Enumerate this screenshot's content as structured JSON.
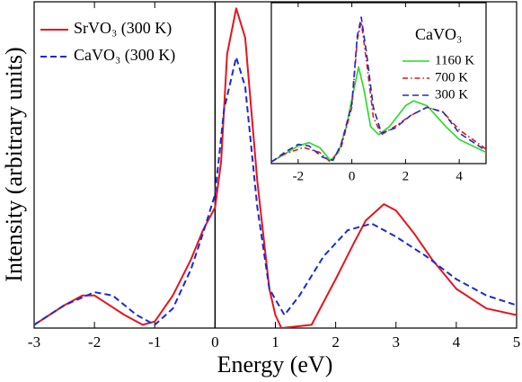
{
  "chart_data": [
    {
      "type": "line",
      "xlabel": "Energy (eV)",
      "ylabel": "Intensity (arbitrary units)",
      "xlim": [
        -3,
        5
      ],
      "xticks": [
        -3,
        -2,
        -1,
        0,
        1,
        2,
        3,
        4,
        5
      ],
      "ylim": [
        0,
        1
      ],
      "legend": "upper left",
      "series": [
        {
          "name": "SrVO₃ (300 K)",
          "color": "#e8141c",
          "linestyle": "solid",
          "x": [
            -3,
            -2.5,
            -2.2,
            -2.0,
            -1.5,
            -1.2,
            -1.0,
            -0.7,
            -0.4,
            -0.2,
            0,
            0.1,
            0.2,
            0.35,
            0.5,
            0.7,
            0.9,
            1.0,
            1.1,
            1.6,
            2.0,
            2.3,
            2.5,
            2.8,
            3.0,
            3.3,
            3.6,
            4.0,
            4.5,
            5.0
          ],
          "values": [
            0.01,
            0.07,
            0.1,
            0.1,
            0.04,
            0.01,
            0.02,
            0.1,
            0.21,
            0.3,
            0.37,
            0.51,
            0.84,
            0.98,
            0.89,
            0.45,
            0.12,
            0.04,
            0.0,
            0.01,
            0.15,
            0.26,
            0.33,
            0.38,
            0.36,
            0.29,
            0.21,
            0.12,
            0.06,
            0.04
          ]
        },
        {
          "name": "CaVO₃ (300 K)",
          "color": "#1a2ad6",
          "linestyle": "dashed",
          "x": [
            -3,
            -2.5,
            -2.0,
            -1.7,
            -1.3,
            -1.0,
            -0.7,
            -0.4,
            -0.2,
            0,
            0.15,
            0.35,
            0.5,
            0.7,
            0.9,
            1.15,
            1.4,
            1.8,
            2.2,
            2.6,
            3.0,
            3.5,
            4.0,
            4.5,
            5.0
          ],
          "values": [
            0.01,
            0.07,
            0.11,
            0.1,
            0.04,
            0.01,
            0.06,
            0.18,
            0.29,
            0.41,
            0.67,
            0.83,
            0.74,
            0.37,
            0.12,
            0.04,
            0.1,
            0.22,
            0.3,
            0.32,
            0.28,
            0.22,
            0.15,
            0.1,
            0.07
          ]
        }
      ]
    },
    {
      "type": "line",
      "title": "CaVO₃",
      "xlim": [
        -3,
        5
      ],
      "xticks": [
        -2,
        0,
        2,
        4
      ],
      "ylim": [
        0,
        1
      ],
      "legend": "upper right",
      "series": [
        {
          "name": "1160 K",
          "color": "#22dd22",
          "linestyle": "solid",
          "x": [
            -3,
            -2.5,
            -2,
            -1.6,
            -1.2,
            -0.8,
            -0.5,
            -0.2,
            0,
            0.25,
            0.45,
            0.7,
            1.0,
            1.4,
            2.0,
            2.3,
            2.8,
            3.5,
            4.0,
            5.0
          ],
          "values": [
            0.01,
            0.06,
            0.11,
            0.13,
            0.1,
            0.02,
            0.07,
            0.23,
            0.4,
            0.6,
            0.46,
            0.23,
            0.18,
            0.23,
            0.36,
            0.39,
            0.36,
            0.23,
            0.15,
            0.07
          ]
        },
        {
          "name": "700 K",
          "color": "#e8141c",
          "linestyle": "dashdot",
          "x": [
            -3,
            -2.5,
            -1.8,
            -1.2,
            -0.8,
            -0.4,
            0,
            0.2,
            0.35,
            0.55,
            0.8,
            1.1,
            1.6,
            2.2,
            2.8,
            3.4,
            4.0,
            5.0
          ],
          "values": [
            0.01,
            0.06,
            0.1,
            0.07,
            0.01,
            0.1,
            0.35,
            0.77,
            0.88,
            0.63,
            0.29,
            0.18,
            0.23,
            0.3,
            0.35,
            0.32,
            0.21,
            0.09
          ]
        },
        {
          "name": "300 K",
          "color": "#1a2ad6",
          "linestyle": "dashed",
          "x": [
            -3,
            -2.5,
            -2,
            -1.6,
            -1.1,
            -0.7,
            -0.4,
            0,
            0.2,
            0.35,
            0.55,
            0.8,
            1.1,
            1.6,
            2.2,
            2.8,
            3.4,
            4.0,
            5.0
          ],
          "values": [
            0.01,
            0.07,
            0.12,
            0.11,
            0.04,
            0.02,
            0.12,
            0.37,
            0.79,
            0.91,
            0.68,
            0.35,
            0.19,
            0.22,
            0.3,
            0.35,
            0.32,
            0.19,
            0.08
          ]
        }
      ]
    }
  ]
}
